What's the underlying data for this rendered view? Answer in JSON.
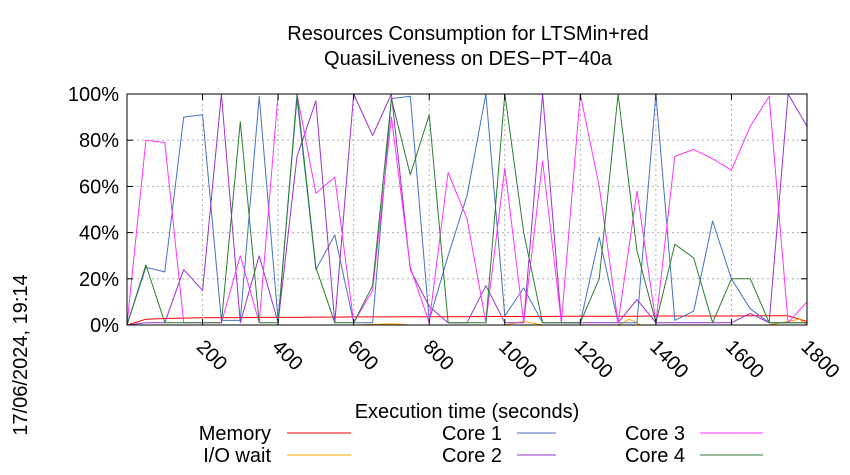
{
  "chart_data": {
    "type": "line",
    "title_lines": [
      "Resources Consumption for LTSMin+red",
      "QuasiLiveness on DES−PT−40a"
    ],
    "xlabel": "Execution time (seconds)",
    "ylabel": "",
    "side_label": "17/06/2024, 19:14",
    "xlim": [
      0,
      1800
    ],
    "ylim": [
      0,
      100
    ],
    "xticks": [
      200,
      400,
      600,
      800,
      1000,
      1200,
      1400,
      1600,
      1800
    ],
    "xtick_labels": [
      "200",
      "400",
      "600",
      "800",
      "1000",
      "1200",
      "1400",
      "1600",
      "1800"
    ],
    "yticks": [
      0,
      20,
      40,
      60,
      80,
      100
    ],
    "ytick_labels": [
      "0%",
      "20%",
      "40%",
      "60%",
      "80%",
      "100%"
    ],
    "grid": true,
    "legend_position": "bottom",
    "series": [
      {
        "name": "Memory",
        "color": "#ff0000",
        "x": [
          0,
          50,
          100,
          150,
          200,
          250,
          300,
          350,
          400,
          450,
          500,
          550,
          600,
          650,
          700,
          750,
          800,
          850,
          900,
          950,
          1000,
          1050,
          1100,
          1150,
          1200,
          1250,
          1300,
          1350,
          1400,
          1450,
          1500,
          1550,
          1600,
          1650,
          1700,
          1750,
          1800
        ],
        "y": [
          0,
          2.5,
          2.8,
          3.0,
          3.1,
          3.2,
          3.2,
          3.3,
          3.3,
          3.3,
          3.4,
          3.4,
          3.5,
          3.5,
          3.5,
          3.6,
          3.6,
          3.6,
          3.6,
          3.7,
          3.7,
          3.7,
          3.7,
          3.8,
          3.8,
          3.8,
          3.8,
          3.8,
          3.9,
          3.9,
          3.9,
          3.9,
          3.9,
          4.0,
          4.0,
          4.0,
          1.5
        ]
      },
      {
        "name": "I/O wait",
        "color": "#ffa500",
        "x": [
          0,
          100,
          200,
          300,
          400,
          500,
          600,
          700,
          750,
          800,
          900,
          1000,
          1050,
          1100,
          1200,
          1300,
          1330,
          1360,
          1400,
          1500,
          1600,
          1700,
          1780,
          1800
        ],
        "y": [
          0,
          0,
          0,
          0,
          0,
          0,
          0,
          0.5,
          0,
          0,
          0,
          0,
          1.5,
          0,
          0,
          0,
          2.5,
          0,
          0,
          0,
          0,
          0,
          2.5,
          0
        ]
      },
      {
        "name": "Core 1",
        "color": "#4472c4",
        "x": [
          0,
          50,
          100,
          150,
          200,
          250,
          300,
          350,
          400,
          450,
          500,
          550,
          600,
          650,
          700,
          750,
          800,
          850,
          900,
          950,
          1000,
          1050,
          1100,
          1150,
          1200,
          1250,
          1300,
          1350,
          1400,
          1450,
          1500,
          1550,
          1600,
          1650,
          1700,
          1750,
          1800
        ],
        "y": [
          0,
          25,
          23,
          90,
          91,
          2,
          2,
          99,
          2,
          98,
          24,
          39,
          1,
          1,
          98,
          99,
          2,
          30,
          56,
          100,
          4,
          16,
          1,
          1,
          1,
          38,
          1,
          1,
          100,
          2,
          6,
          45,
          20,
          7,
          1,
          1,
          1
        ]
      },
      {
        "name": "Core 2",
        "color": "#9932cc",
        "x": [
          0,
          50,
          100,
          150,
          200,
          250,
          300,
          350,
          400,
          450,
          500,
          550,
          600,
          650,
          700,
          750,
          800,
          850,
          900,
          950,
          1000,
          1050,
          1100,
          1150,
          1200,
          1250,
          1300,
          1350,
          1400,
          1450,
          1500,
          1550,
          1600,
          1650,
          1700,
          1750,
          1800
        ],
        "y": [
          0,
          1,
          1,
          24,
          15,
          100,
          1,
          30,
          1,
          73,
          97,
          1,
          100,
          82,
          100,
          24,
          8,
          1,
          1,
          17,
          1,
          1,
          100,
          1,
          1,
          1,
          1,
          11,
          1,
          1,
          1,
          1,
          1,
          5,
          1,
          100,
          86
        ]
      },
      {
        "name": "Core 3",
        "color": "#ff33ff",
        "x": [
          0,
          50,
          100,
          150,
          200,
          250,
          300,
          350,
          400,
          450,
          500,
          550,
          600,
          650,
          700,
          750,
          800,
          850,
          900,
          950,
          1000,
          1050,
          1100,
          1150,
          1200,
          1250,
          1300,
          1350,
          1400,
          1450,
          1500,
          1550,
          1600,
          1650,
          1700,
          1750,
          1800
        ],
        "y": [
          0,
          80,
          79,
          1,
          1,
          1,
          30,
          1,
          100,
          100,
          57,
          64,
          1,
          15,
          90,
          25,
          1,
          66,
          46,
          1,
          68,
          1,
          71,
          1,
          100,
          60,
          1,
          58,
          1,
          73,
          76,
          72,
          67,
          86,
          99,
          1,
          10
        ]
      },
      {
        "name": "Core 4",
        "color": "#2e7d32",
        "x": [
          0,
          50,
          100,
          150,
          200,
          250,
          300,
          350,
          400,
          450,
          500,
          550,
          600,
          650,
          700,
          750,
          800,
          850,
          900,
          950,
          1000,
          1050,
          1100,
          1150,
          1200,
          1250,
          1300,
          1350,
          1400,
          1450,
          1500,
          1550,
          1600,
          1650,
          1700,
          1750,
          1800
        ],
        "y": [
          0,
          26,
          1,
          1,
          1,
          1,
          88,
          1,
          1,
          100,
          25,
          1,
          1,
          17,
          98,
          65,
          91,
          1,
          1,
          1,
          100,
          40,
          1,
          1,
          1,
          20,
          100,
          32,
          1,
          35,
          29,
          1,
          20,
          20,
          1,
          1,
          1
        ]
      }
    ]
  }
}
